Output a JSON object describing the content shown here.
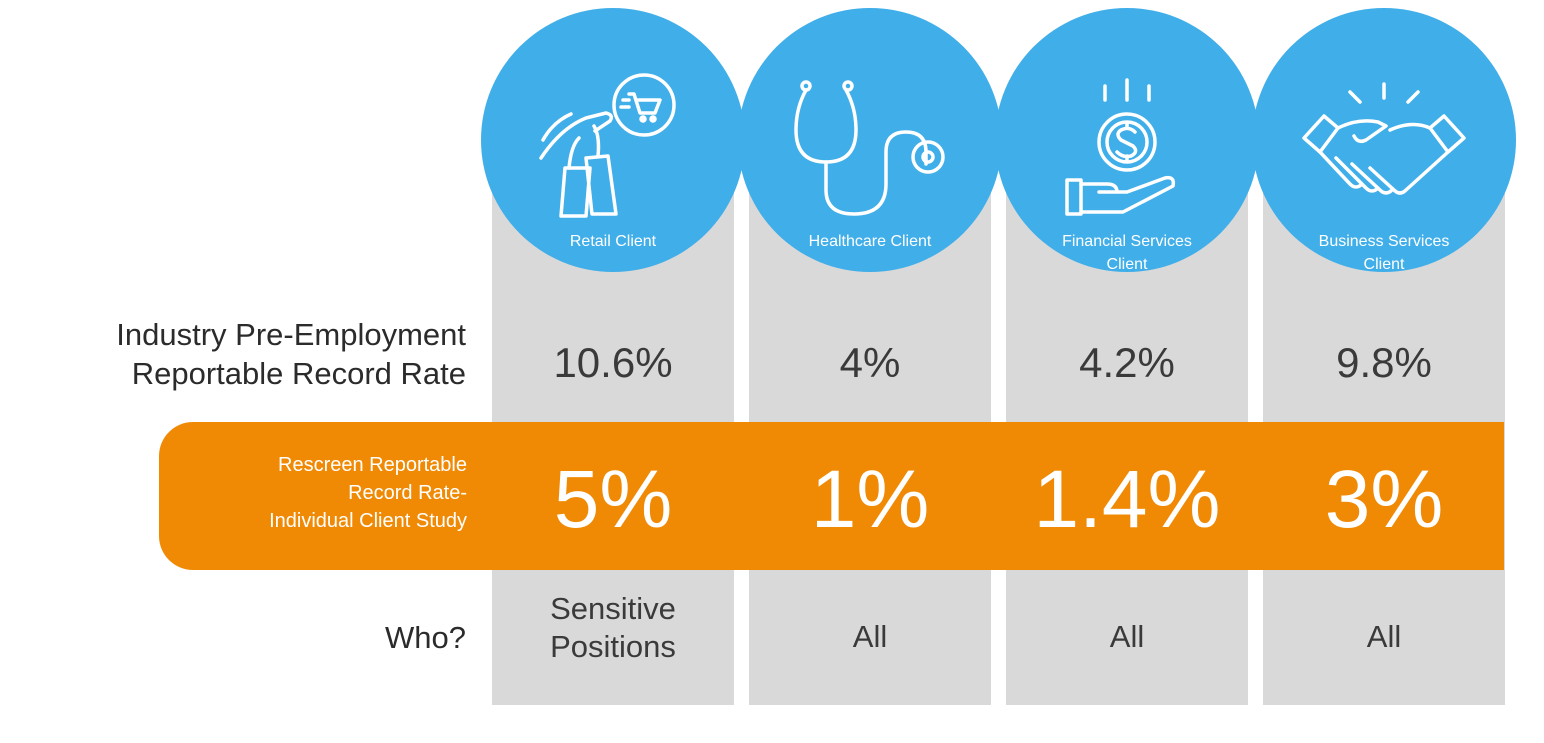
{
  "row_labels": {
    "industry_line1": "Industry Pre-Employment",
    "industry_line2": "Reportable Record Rate",
    "rescreen_line1": "Rescreen Reportable",
    "rescreen_line2": "Record Rate-",
    "rescreen_line3": "Individual Client Study",
    "who": "Who?"
  },
  "clients": [
    {
      "icon": "shopping-icon",
      "label_line1": "Retail Client",
      "label_line2": "",
      "industry_rate": "10.6%",
      "rescreen_rate": "5%",
      "who_line1": "Sensitive",
      "who_line2": "Positions"
    },
    {
      "icon": "stethoscope-icon",
      "label_line1": "Healthcare Client",
      "label_line2": "",
      "industry_rate": "4%",
      "rescreen_rate": "1%",
      "who_line1": "All",
      "who_line2": ""
    },
    {
      "icon": "money-hand-icon",
      "label_line1": "Financial Services",
      "label_line2": "Client",
      "industry_rate": "4.2%",
      "rescreen_rate": "1.4%",
      "who_line1": "All",
      "who_line2": ""
    },
    {
      "icon": "handshake-icon",
      "label_line1": "Business Services",
      "label_line2": "Client",
      "industry_rate": "9.8%",
      "rescreen_rate": "3%",
      "who_line1": "All",
      "who_line2": ""
    }
  ],
  "colors": {
    "circle": "#40aee9",
    "column": "#d9d9d9",
    "band": "#f08a05",
    "text": "#3a3a3a"
  }
}
